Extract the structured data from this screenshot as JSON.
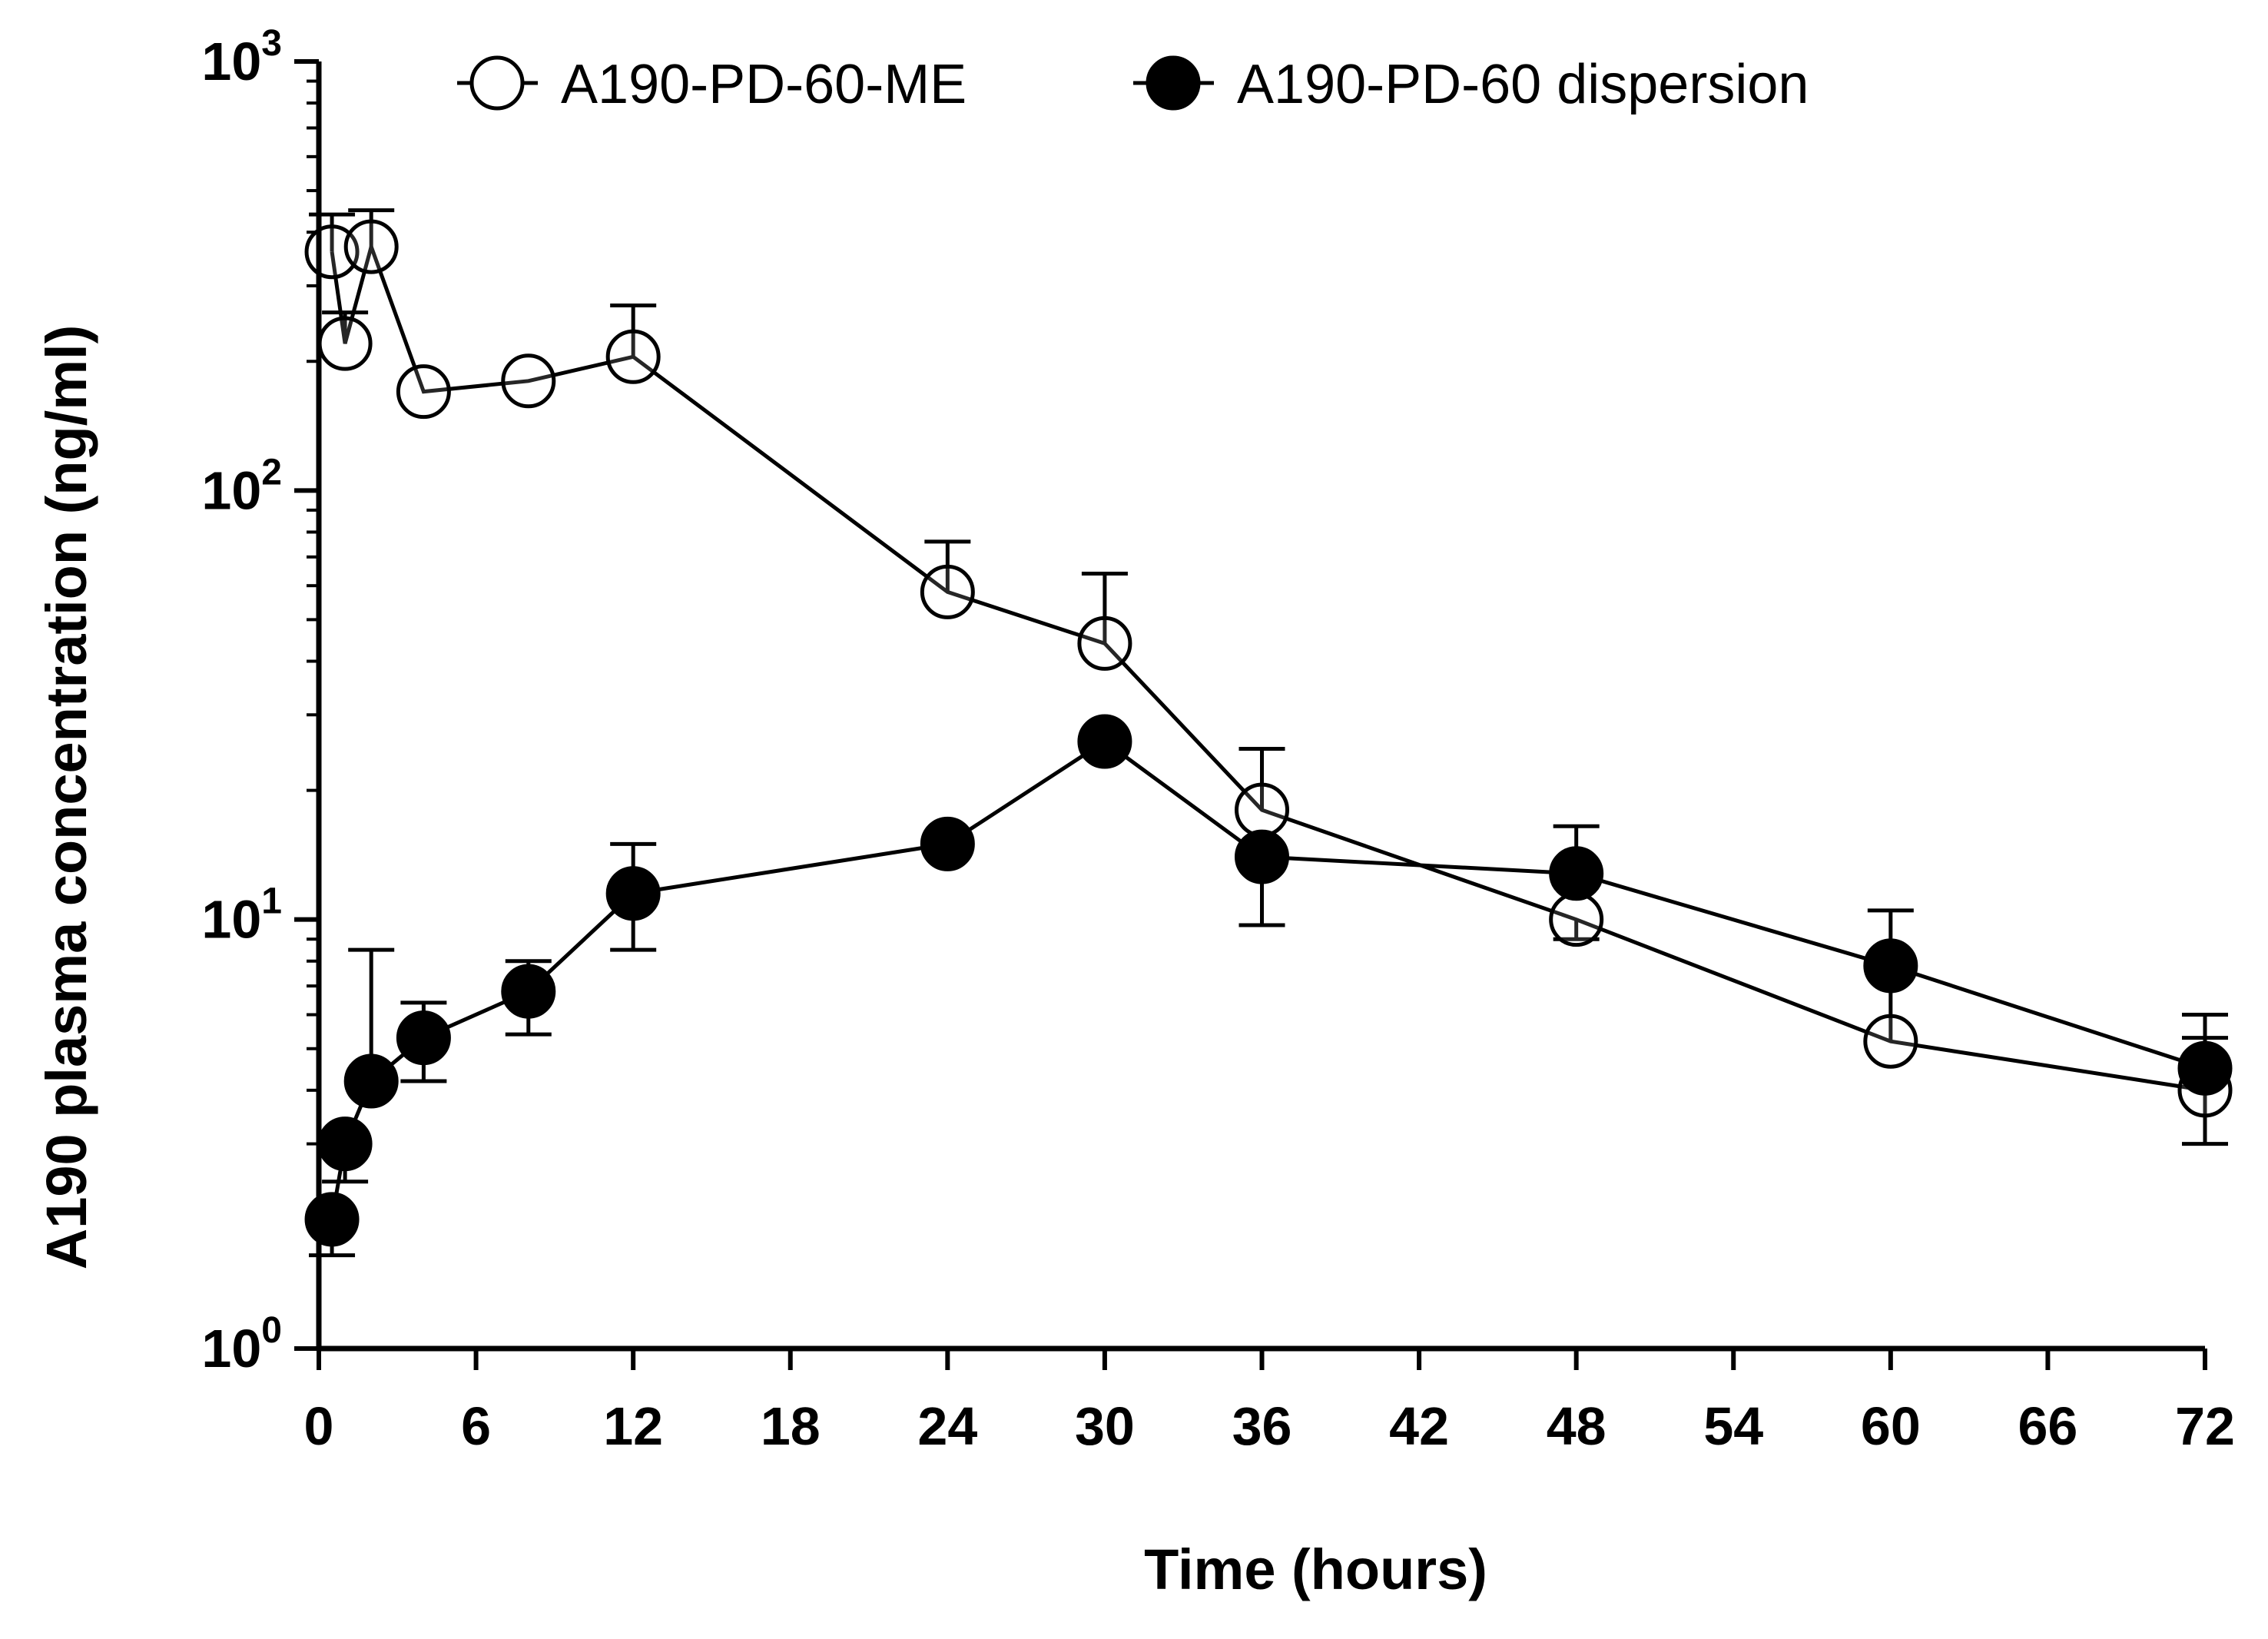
{
  "chart_data": {
    "type": "line",
    "title": "",
    "xlabel": "Time (hours)",
    "ylabel": "A190 plasma concentration (ng/ml)",
    "xlim": [
      0,
      72
    ],
    "ylim": [
      1,
      1000
    ],
    "yscale": "log",
    "grid": false,
    "legend_position": "top",
    "x_ticks": [
      {
        "value": 0,
        "label": "0"
      },
      {
        "value": 6,
        "label": "6"
      },
      {
        "value": 12,
        "label": "12"
      },
      {
        "value": 18,
        "label": "18"
      },
      {
        "value": 24,
        "label": "24"
      },
      {
        "value": 30,
        "label": "30"
      },
      {
        "value": 36,
        "label": "36"
      },
      {
        "value": 42,
        "label": "42"
      },
      {
        "value": 48,
        "label": "48"
      },
      {
        "value": 54,
        "label": "54"
      },
      {
        "value": 60,
        "label": "60"
      },
      {
        "value": 66,
        "label": "66"
      },
      {
        "value": 72,
        "label": "72"
      }
    ],
    "y_ticks": [
      {
        "value": 1,
        "base": "10",
        "exp": "0"
      },
      {
        "value": 10,
        "base": "10",
        "exp": "1"
      },
      {
        "value": 100,
        "base": "10",
        "exp": "2"
      },
      {
        "value": 1000,
        "base": "10",
        "exp": "3"
      }
    ],
    "series": [
      {
        "name": "A190-PD-60-ME",
        "marker": "open-circle",
        "color": "#000000",
        "x": [
          0.5,
          1,
          2,
          4,
          8,
          12,
          24,
          30,
          36,
          48,
          60,
          72
        ],
        "y": [
          360,
          220,
          370,
          170,
          180,
          205,
          58,
          44,
          18,
          10,
          5.2,
          4.0
        ],
        "err_upper": [
          440,
          260,
          450,
          null,
          null,
          270,
          76,
          64,
          25,
          null,
          10.5,
          6.0
        ],
        "err_lower": [
          null,
          null,
          null,
          null,
          null,
          null,
          null,
          null,
          null,
          9.0,
          null,
          3.0
        ]
      },
      {
        "name": "A190-PD-60 dispersion",
        "marker": "filled-circle",
        "color": "#000000",
        "x": [
          0.5,
          1,
          2,
          4,
          8,
          12,
          24,
          30,
          36,
          48,
          60,
          72
        ],
        "y": [
          2.0,
          3.0,
          4.2,
          5.3,
          6.8,
          11.5,
          15,
          26,
          14,
          12.8,
          7.8,
          4.5
        ],
        "err_upper": [
          null,
          null,
          8.5,
          6.4,
          8.0,
          15,
          null,
          null,
          null,
          16.5,
          null,
          5.3
        ],
        "err_lower": [
          1.65,
          2.45,
          null,
          4.2,
          5.4,
          8.5,
          null,
          null,
          9.7,
          null,
          null,
          null
        ]
      }
    ]
  }
}
